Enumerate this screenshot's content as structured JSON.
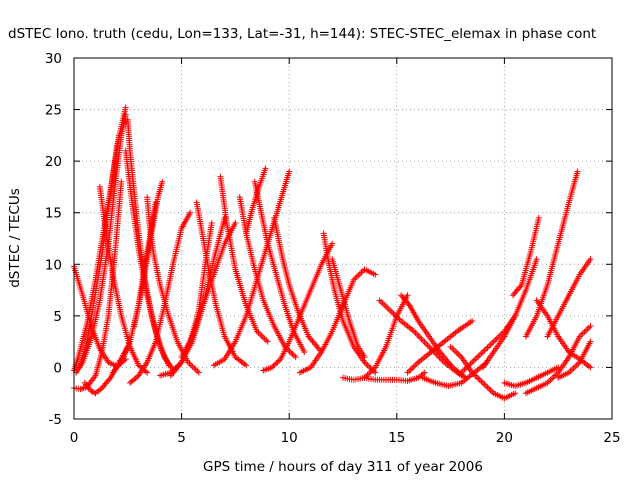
{
  "chart_data": {
    "type": "scatter",
    "title": "dSTEC Iono. truth (cedu, Lon=133, Lat=-31, h=144): STEC-STEC_elemax in phase cont",
    "xlabel": "GPS time / hours of day 311 of year 2006",
    "ylabel": "dSTEC  / TECUs",
    "xlim": [
      0,
      25
    ],
    "ylim": [
      -5,
      30
    ],
    "xticks": [
      "0",
      "5",
      "10",
      "15",
      "20",
      "25"
    ],
    "yticks": [
      "-5",
      "0",
      "5",
      "10",
      "15",
      "20",
      "25",
      "30"
    ],
    "grid": true,
    "marker": "+",
    "color": "#ff0000",
    "series": [
      {
        "x": [
          0.0,
          0.4,
          0.8,
          1.2,
          1.6,
          2.0,
          2.4
        ],
        "y": [
          9.8,
          7.0,
          4.0,
          1.8,
          0.5,
          0.1,
          0.8
        ]
      },
      {
        "x": [
          0.0,
          0.2,
          0.6,
          1.0,
          1.4,
          1.8,
          2.1
        ],
        "y": [
          -0.3,
          1.0,
          4.2,
          8.5,
          13.5,
          18.5,
          22.5
        ]
      },
      {
        "x": [
          0.0,
          0.3,
          0.6,
          1.0,
          1.3,
          1.6,
          1.9,
          2.2
        ],
        "y": [
          -2.0,
          -2.1,
          -1.9,
          -0.8,
          1.5,
          5.0,
          11.0,
          18.0
        ]
      },
      {
        "x": [
          0.1,
          0.4,
          0.8,
          1.2,
          1.6,
          1.9,
          2.2,
          2.4
        ],
        "y": [
          -0.5,
          0.5,
          2.8,
          6.5,
          12.0,
          17.5,
          22.5,
          24.5
        ]
      },
      {
        "x": [
          0.3,
          0.6,
          0.9,
          1.3,
          1.7,
          2.0,
          2.4
        ],
        "y": [
          0.2,
          2.5,
          6.0,
          11.0,
          17.0,
          21.5,
          25.2
        ]
      },
      {
        "x": [
          0.5,
          0.8,
          1.0,
          1.3,
          1.7,
          2.1,
          2.5
        ],
        "y": [
          -1.5,
          -2.3,
          -2.5,
          -2.0,
          -1.0,
          0.5,
          2.0
        ]
      },
      {
        "x": [
          1.2,
          1.5,
          1.8,
          2.2,
          2.6,
          3.0,
          3.4
        ],
        "y": [
          17.5,
          13.0,
          9.0,
          5.0,
          2.0,
          0.2,
          -0.5
        ]
      },
      {
        "x": [
          2.5,
          2.6,
          2.8,
          3.0,
          3.3,
          3.6,
          4.0,
          4.4
        ],
        "y": [
          24.0,
          21.0,
          17.0,
          13.0,
          8.5,
          5.0,
          2.0,
          0.2
        ]
      },
      {
        "x": [
          2.4,
          2.7,
          3.0,
          3.4,
          3.8,
          4.2,
          4.6
        ],
        "y": [
          21.0,
          16.0,
          11.5,
          7.0,
          3.5,
          1.0,
          -0.2
        ]
      },
      {
        "x": [
          1.8,
          2.2,
          2.6,
          3.0,
          3.3,
          3.6,
          3.8
        ],
        "y": [
          -0.5,
          0.5,
          2.5,
          6.0,
          10.0,
          13.5,
          16.0
        ]
      },
      {
        "x": [
          2.6,
          3.0,
          3.4,
          3.8,
          4.2,
          4.6,
          5.0,
          5.4
        ],
        "y": [
          -1.5,
          -0.8,
          0.5,
          2.5,
          6.0,
          10.0,
          13.5,
          15.0
        ]
      },
      {
        "x": [
          3.4,
          3.5,
          3.7,
          4.0,
          4.4,
          4.8,
          5.3,
          5.8
        ],
        "y": [
          16.5,
          14.0,
          11.0,
          8.0,
          5.0,
          2.5,
          0.5,
          -0.5
        ]
      },
      {
        "x": [
          2.8,
          3.2,
          3.6,
          3.9,
          4.1
        ],
        "y": [
          4.0,
          8.0,
          13.0,
          16.5,
          18.0
        ]
      },
      {
        "x": [
          4.0,
          4.5,
          5.0,
          5.5,
          6.0,
          6.5,
          7.0
        ],
        "y": [
          -0.8,
          -0.5,
          0.5,
          2.5,
          6.0,
          10.5,
          14.5
        ]
      },
      {
        "x": [
          5.7,
          6.0,
          6.3,
          6.6,
          7.0,
          7.5,
          8.0
        ],
        "y": [
          16.0,
          12.5,
          9.0,
          6.0,
          3.0,
          1.0,
          0.2
        ]
      },
      {
        "x": [
          4.5,
          5.0,
          5.4,
          5.8,
          6.1,
          6.4
        ],
        "y": [
          -0.8,
          0.5,
          2.5,
          5.5,
          10.0,
          14.0
        ]
      },
      {
        "x": [
          5.0,
          5.5,
          6.0,
          6.5,
          7.0,
          7.5
        ],
        "y": [
          1.0,
          3.0,
          6.0,
          9.0,
          12.0,
          14.0
        ]
      },
      {
        "x": [
          6.8,
          7.1,
          7.5,
          8.0,
          8.5,
          9.0
        ],
        "y": [
          18.5,
          14.0,
          9.5,
          6.0,
          3.5,
          2.5
        ]
      },
      {
        "x": [
          6.5,
          7.0,
          7.5,
          8.0,
          8.5,
          9.0,
          9.5,
          10.0
        ],
        "y": [
          0.2,
          0.8,
          2.5,
          5.0,
          8.5,
          12.0,
          15.5,
          19.0
        ]
      },
      {
        "x": [
          7.7,
          8.0,
          8.4,
          8.8,
          9.3,
          9.8,
          10.3
        ],
        "y": [
          16.5,
          13.0,
          9.5,
          6.5,
          4.0,
          2.0,
          1.0
        ]
      },
      {
        "x": [
          8.0,
          8.3,
          8.6,
          8.9
        ],
        "y": [
          13.0,
          15.5,
          17.5,
          19.3
        ]
      },
      {
        "x": [
          8.4,
          8.7,
          9.0,
          9.4,
          9.8,
          10.2,
          10.7
        ],
        "y": [
          18.0,
          15.0,
          12.0,
          9.0,
          6.0,
          3.5,
          1.5
        ]
      },
      {
        "x": [
          9.3,
          9.5,
          9.7,
          10.0,
          10.4,
          10.9,
          11.5
        ],
        "y": [
          14.5,
          12.5,
          10.5,
          8.0,
          5.5,
          3.0,
          1.5
        ]
      },
      {
        "x": [
          8.8,
          9.2,
          9.6,
          10.0,
          10.5,
          11.0,
          11.5,
          12.0
        ],
        "y": [
          -0.3,
          0.0,
          0.8,
          2.5,
          5.0,
          7.5,
          10.0,
          12.0
        ]
      },
      {
        "x": [
          10.5,
          11.0,
          11.5,
          12.0,
          12.5,
          13.0,
          13.5,
          14.0
        ],
        "y": [
          -0.5,
          0.0,
          1.5,
          3.5,
          6.0,
          8.5,
          9.5,
          9.0
        ]
      },
      {
        "x": [
          11.6,
          11.8,
          12.1,
          12.5,
          13.0,
          13.5,
          14.0
        ],
        "y": [
          13.0,
          10.5,
          7.5,
          4.5,
          2.0,
          0.5,
          -0.5
        ]
      },
      {
        "x": [
          12.0,
          12.4,
          12.8,
          13.2,
          13.5
        ],
        "y": [
          10.5,
          7.5,
          4.5,
          2.0,
          1.0
        ]
      },
      {
        "x": [
          12.5,
          13.0,
          13.5,
          14.0,
          14.5,
          15.0,
          15.5
        ],
        "y": [
          -1.0,
          -1.2,
          -1.0,
          0.0,
          2.0,
          5.0,
          7.0
        ]
      },
      {
        "x": [
          13.5,
          14.0,
          14.5,
          15.0,
          15.5,
          16.0,
          16.3
        ],
        "y": [
          -1.0,
          -1.2,
          -1.2,
          -1.2,
          -1.3,
          -1.0,
          -0.5
        ]
      },
      {
        "x": [
          14.2,
          14.7,
          15.2,
          15.8,
          16.5,
          17.2,
          18.0
        ],
        "y": [
          6.5,
          5.5,
          4.5,
          3.5,
          2.0,
          0.5,
          -0.8
        ]
      },
      {
        "x": [
          15.2,
          15.6,
          16.0,
          16.5,
          17.0,
          17.6,
          18.2
        ],
        "y": [
          7.0,
          6.0,
          4.5,
          3.0,
          1.5,
          0.0,
          -1.0
        ]
      },
      {
        "x": [
          15.5,
          16.0,
          16.6,
          17.2,
          17.8,
          18.5
        ],
        "y": [
          -0.5,
          0.5,
          1.5,
          2.5,
          3.5,
          4.5
        ]
      },
      {
        "x": [
          16.2,
          16.8,
          17.4,
          18.0,
          18.6,
          19.2
        ],
        "y": [
          -1.0,
          -1.5,
          -1.8,
          -1.5,
          -0.5,
          0.5
        ]
      },
      {
        "x": [
          17.5,
          18.0,
          18.5,
          19.0,
          19.5,
          20.0,
          20.5
        ],
        "y": [
          2.0,
          1.0,
          -0.5,
          -1.5,
          -2.5,
          -3.0,
          -2.5
        ]
      },
      {
        "x": [
          18.0,
          18.5,
          19.0,
          19.5,
          20.0,
          20.5
        ],
        "y": [
          -0.5,
          0.5,
          1.5,
          2.5,
          3.5,
          5.0
        ]
      },
      {
        "x": [
          19.0,
          19.5,
          20.0,
          20.5,
          21.0,
          21.5
        ],
        "y": [
          0.0,
          1.5,
          3.0,
          5.0,
          7.5,
          10.5
        ]
      },
      {
        "x": [
          20.0,
          20.5,
          21.0,
          21.5,
          22.0,
          22.5
        ],
        "y": [
          -1.5,
          -1.8,
          -1.5,
          -1.0,
          -0.5,
          0.0
        ]
      },
      {
        "x": [
          20.4,
          20.8,
          21.2,
          21.6
        ],
        "y": [
          7.0,
          8.0,
          11.0,
          14.5
        ]
      },
      {
        "x": [
          21.0,
          21.5,
          22.0,
          22.5,
          23.0,
          23.4
        ],
        "y": [
          3.0,
          5.0,
          8.0,
          12.0,
          16.0,
          19.0
        ]
      },
      {
        "x": [
          21.5,
          22.0,
          22.5,
          23.0,
          23.5,
          24.0
        ],
        "y": [
          6.5,
          5.0,
          3.0,
          1.5,
          0.8,
          0.0
        ]
      },
      {
        "x": [
          21.0,
          21.5,
          22.0,
          22.5,
          23.0,
          23.5,
          24.0
        ],
        "y": [
          -2.5,
          -2.0,
          -1.5,
          -0.5,
          1.0,
          3.0,
          4.0
        ]
      },
      {
        "x": [
          22.0,
          22.5,
          23.0,
          23.5,
          24.0
        ],
        "y": [
          3.0,
          5.0,
          7.0,
          9.0,
          10.5
        ]
      },
      {
        "x": [
          22.5,
          23.0,
          23.5,
          24.0
        ],
        "y": [
          -1.0,
          -0.5,
          0.5,
          2.5
        ]
      }
    ]
  }
}
